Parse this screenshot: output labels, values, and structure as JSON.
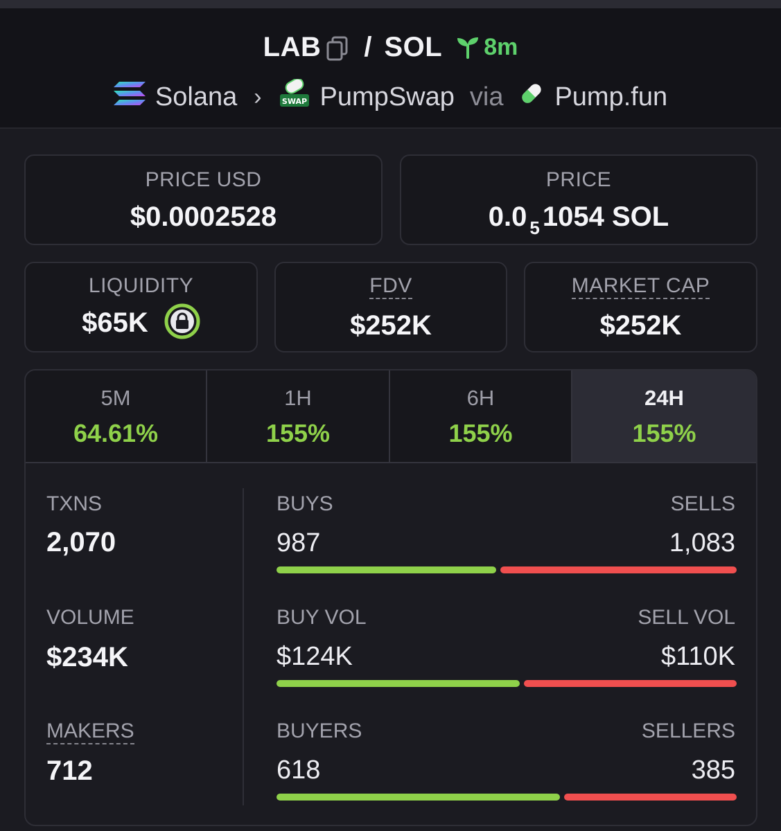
{
  "header": {
    "base_token": "LAB",
    "separator": "/",
    "quote_token": "SOL",
    "age": "8m",
    "chain": "Solana",
    "dex": "PumpSwap",
    "via": "via",
    "launchpad": "Pump.fun",
    "dex_badge": "SWAP"
  },
  "price_usd": {
    "label": "PRICE USD",
    "value": "$0.0002528"
  },
  "price_native": {
    "label": "PRICE",
    "prefix": "0.0",
    "zeros": "5",
    "digits": "1054",
    "unit": "SOL"
  },
  "liquidity": {
    "label": "LIQUIDITY",
    "value": "$65K"
  },
  "fdv": {
    "label": "FDV",
    "value": "$252K"
  },
  "market_cap": {
    "label": "MARKET CAP",
    "value": "$252K"
  },
  "tabs": [
    {
      "label": "5M",
      "change": "64.61%"
    },
    {
      "label": "1H",
      "change": "155%"
    },
    {
      "label": "6H",
      "change": "155%"
    },
    {
      "label": "24H",
      "change": "155%",
      "active": true
    }
  ],
  "stats": {
    "txns": {
      "label": "TXNS",
      "value": "2,070"
    },
    "volume": {
      "label": "VOLUME",
      "value": "$234K"
    },
    "makers": {
      "label": "MAKERS",
      "value": "712"
    },
    "buys": {
      "label": "BUYS",
      "value": "987"
    },
    "sells": {
      "label": "SELLS",
      "value": "1,083"
    },
    "buy_vol": {
      "label": "BUY VOL",
      "value": "$124K"
    },
    "sell_vol": {
      "label": "SELL VOL",
      "value": "$110K"
    },
    "buyers": {
      "label": "BUYERS",
      "value": "618"
    },
    "sellers": {
      "label": "SELLERS",
      "value": "385"
    }
  },
  "colors": {
    "positive": "#8fd14a",
    "negative": "#f04f4f",
    "age_green": "#5ed16c"
  }
}
